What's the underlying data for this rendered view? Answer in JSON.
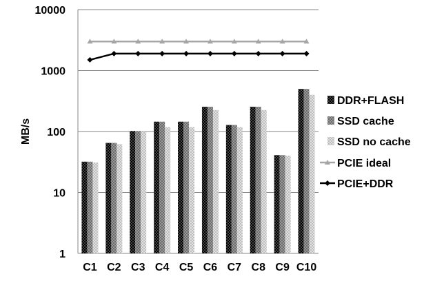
{
  "chart_data": {
    "type": "bar",
    "title": "",
    "xlabel": "",
    "ylabel": "MB/s",
    "yscale": "log",
    "ylim": [
      1,
      10000
    ],
    "yticks": [
      "1",
      "10",
      "100",
      "1000",
      "10000"
    ],
    "grid": "horizontal",
    "legend_position": "right",
    "categories": [
      "C1",
      "C2",
      "C3",
      "C4",
      "C5",
      "C6",
      "C7",
      "C8",
      "C9",
      "C10"
    ],
    "series": [
      {
        "name": "DDR+FLASH",
        "kind": "bar",
        "color": "#1a1a1a",
        "values": [
          32,
          65,
          102,
          145,
          145,
          255,
          128,
          255,
          41,
          500
        ]
      },
      {
        "name": "SSD cache",
        "kind": "bar",
        "color": "#808080",
        "values": [
          32,
          65,
          102,
          145,
          145,
          255,
          128,
          255,
          41,
          500
        ]
      },
      {
        "name": "SSD no cache",
        "kind": "bar",
        "color": "#d0d0d0",
        "values": [
          31,
          62,
          100,
          118,
          118,
          225,
          118,
          225,
          40,
          400
        ]
      },
      {
        "name": "PCIE ideal",
        "kind": "line",
        "color": "#a6a6a6",
        "marker": "triangle",
        "values": [
          3000,
          3000,
          3000,
          3000,
          3000,
          3000,
          3000,
          3000,
          3000,
          3000
        ]
      },
      {
        "name": "PCIE+DDR",
        "kind": "line",
        "color": "#000000",
        "marker": "diamond",
        "values": [
          1500,
          1900,
          1900,
          1900,
          1900,
          1900,
          1900,
          1900,
          1900,
          1900
        ]
      }
    ]
  }
}
